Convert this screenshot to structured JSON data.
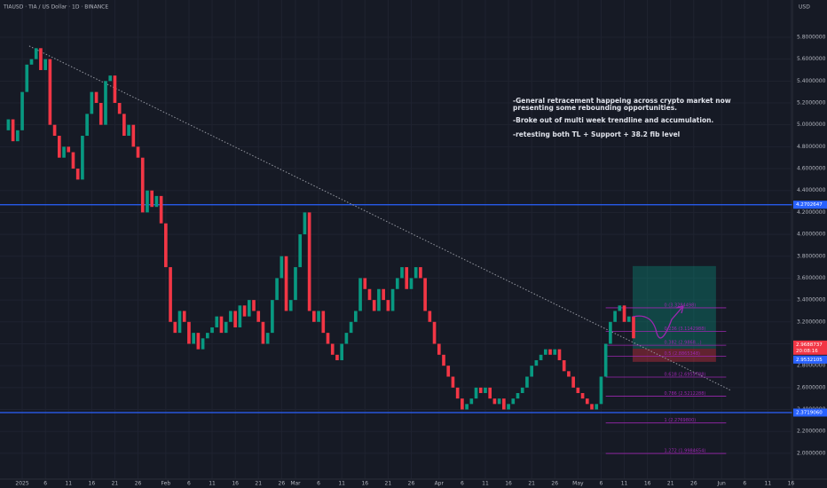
{
  "chart_data": {
    "type": "candlestick",
    "title": "TIAUSD · TIA / US Dollar · 1D · BINANCE",
    "currency": "USD",
    "xlim": [
      -4.8,
      166.3
    ],
    "ylim": [
      1.764,
      6.14
    ],
    "x_start": -4,
    "closes": [
      4.95,
      5.05,
      4.85,
      4.95,
      5.3,
      5.55,
      5.6,
      5.7,
      5.5,
      5.6,
      5.0,
      4.9,
      4.7,
      4.8,
      4.75,
      4.6,
      4.5,
      4.9,
      5.1,
      5.3,
      5.2,
      5.0,
      5.4,
      5.45,
      5.2,
      5.1,
      4.9,
      5.0,
      4.8,
      4.7,
      4.2,
      4.4,
      4.25,
      4.35,
      4.1,
      3.7,
      3.2,
      3.1,
      3.3,
      3.2,
      3.0,
      3.1,
      2.95,
      3.05,
      3.1,
      3.15,
      3.25,
      3.1,
      3.2,
      3.3,
      3.15,
      3.35,
      3.25,
      3.4,
      3.3,
      3.2,
      3.0,
      3.1,
      3.4,
      3.6,
      3.8,
      3.3,
      3.4,
      3.7,
      4.0,
      4.2,
      3.3,
      3.2,
      3.3,
      3.1,
      3.0,
      2.9,
      2.85,
      3.0,
      3.1,
      3.2,
      3.3,
      3.6,
      3.5,
      3.4,
      3.3,
      3.5,
      3.4,
      3.3,
      3.5,
      3.6,
      3.7,
      3.5,
      3.6,
      3.7,
      3.6,
      3.3,
      3.2,
      3.0,
      2.9,
      2.8,
      2.7,
      2.6,
      2.5,
      2.4,
      2.45,
      2.5,
      2.6,
      2.55,
      2.6,
      2.5,
      2.45,
      2.5,
      2.4,
      2.45,
      2.5,
      2.55,
      2.6,
      2.7,
      2.8,
      2.85,
      2.9,
      2.95,
      2.9,
      2.95,
      2.85,
      2.75,
      2.7,
      2.6,
      2.55,
      2.5,
      2.45,
      2.4,
      2.45,
      2.7,
      3.0,
      3.2,
      3.3,
      3.35,
      3.2,
      3.25,
      3.05
    ],
    "up_color": "#089981",
    "down_color": "#f23645",
    "yticks": [
      {
        "value": 2.0,
        "label": "2.0000000"
      },
      {
        "value": 2.2,
        "label": "2.2000000"
      },
      {
        "value": 2.4,
        "label": "2.4000000"
      },
      {
        "value": 2.6,
        "label": "2.6000000"
      },
      {
        "value": 2.8,
        "label": "2.8000000"
      },
      {
        "value": 3.0,
        "label": "3.0000000"
      },
      {
        "value": 3.2,
        "label": "3.2000000"
      },
      {
        "value": 3.4,
        "label": "3.4000000"
      },
      {
        "value": 3.6,
        "label": "3.6000000"
      },
      {
        "value": 3.8,
        "label": "3.8000000"
      },
      {
        "value": 4.0,
        "label": "4.0000000"
      },
      {
        "value": 4.2,
        "label": "4.2000000"
      },
      {
        "value": 4.4,
        "label": "4.4000000"
      },
      {
        "value": 4.6,
        "label": "4.6000000"
      },
      {
        "value": 4.8,
        "label": "4.8000000"
      },
      {
        "value": 5.0,
        "label": "5.0000000"
      },
      {
        "value": 5.2,
        "label": "5.2000000"
      },
      {
        "value": 5.4,
        "label": "5.4000000"
      },
      {
        "value": 5.6,
        "label": "5.6000000"
      },
      {
        "value": 5.8,
        "label": "5.8000000"
      }
    ],
    "xticks": [
      {
        "value": 0,
        "label": "2025"
      },
      {
        "value": 5,
        "label": "6"
      },
      {
        "value": 10,
        "label": "11"
      },
      {
        "value": 15,
        "label": "16"
      },
      {
        "value": 20,
        "label": "21"
      },
      {
        "value": 25,
        "label": "26"
      },
      {
        "value": 31,
        "label": "Feb"
      },
      {
        "value": 36,
        "label": "6"
      },
      {
        "value": 41,
        "label": "11"
      },
      {
        "value": 46,
        "label": "16"
      },
      {
        "value": 51,
        "label": "21"
      },
      {
        "value": 56,
        "label": "26"
      },
      {
        "value": 59,
        "label": "Mar"
      },
      {
        "value": 64,
        "label": "6"
      },
      {
        "value": 69,
        "label": "11"
      },
      {
        "value": 74,
        "label": "16"
      },
      {
        "value": 79,
        "label": "21"
      },
      {
        "value": 84,
        "label": "26"
      },
      {
        "value": 90,
        "label": "Apr"
      },
      {
        "value": 95,
        "label": "6"
      },
      {
        "value": 100,
        "label": "11"
      },
      {
        "value": 105,
        "label": "16"
      },
      {
        "value": 110,
        "label": "21"
      },
      {
        "value": 115,
        "label": "26"
      },
      {
        "value": 120,
        "label": "May"
      },
      {
        "value": 125,
        "label": "6"
      },
      {
        "value": 130,
        "label": "11"
      },
      {
        "value": 135,
        "label": "16"
      },
      {
        "value": 140,
        "label": "21"
      },
      {
        "value": 145,
        "label": "26"
      },
      {
        "value": 151,
        "label": "Jun"
      },
      {
        "value": 156,
        "label": "6"
      },
      {
        "value": 161,
        "label": "11"
      },
      {
        "value": 166,
        "label": "16"
      }
    ],
    "hlines": [
      {
        "value": 4.2702647,
        "label": "4.2702647"
      },
      {
        "value": 2.371906,
        "label": "2.3719060"
      }
    ],
    "hline_color": "#2962ff",
    "trendline": {
      "x": [
        1.5,
        153
      ],
      "y": [
        5.72,
        2.575
      ]
    },
    "fib": {
      "x": [
        126,
        152
      ],
      "color": "#9c27b0",
      "levels": [
        {
          "value": 3.3284498,
          "label": "0 (3.3284498)"
        },
        {
          "value": 3.1142988,
          "label": "0.236 (3.1142988)"
        },
        {
          "value": 2.9868,
          "label": "0.382 (2.9868...)"
        },
        {
          "value": 2.8865348,
          "label": "0.5 (2.8865348)"
        },
        {
          "value": 2.6959788,
          "label": "0.618 (2.6959788)"
        },
        {
          "value": 2.5212288,
          "label": "0.786 (2.5212288)"
        },
        {
          "value": 2.27698,
          "label": "1 (2.2769800)"
        },
        {
          "value": 1.9984654,
          "label": "1.272 (1.9984654)"
        }
      ]
    },
    "position": {
      "x": [
        131.8,
        149.8
      ],
      "target": 3.71,
      "entry": 2.956,
      "stop": 2.835
    },
    "price_tags": [
      {
        "value": 2.9688737,
        "label": "2.9688737",
        "color": "#f23645"
      },
      {
        "value": 2.9532105,
        "label": "2.9532105",
        "color": "#2962ff"
      }
    ],
    "countdown": "20:08:16",
    "annotations": [
      "-General retracement happeing across crypto market now presenting some rebounding opportunities.",
      "-Broke out of multi week trendline and accumulation.",
      "-retesting both TL + Support + 38.2 fib level"
    ]
  }
}
